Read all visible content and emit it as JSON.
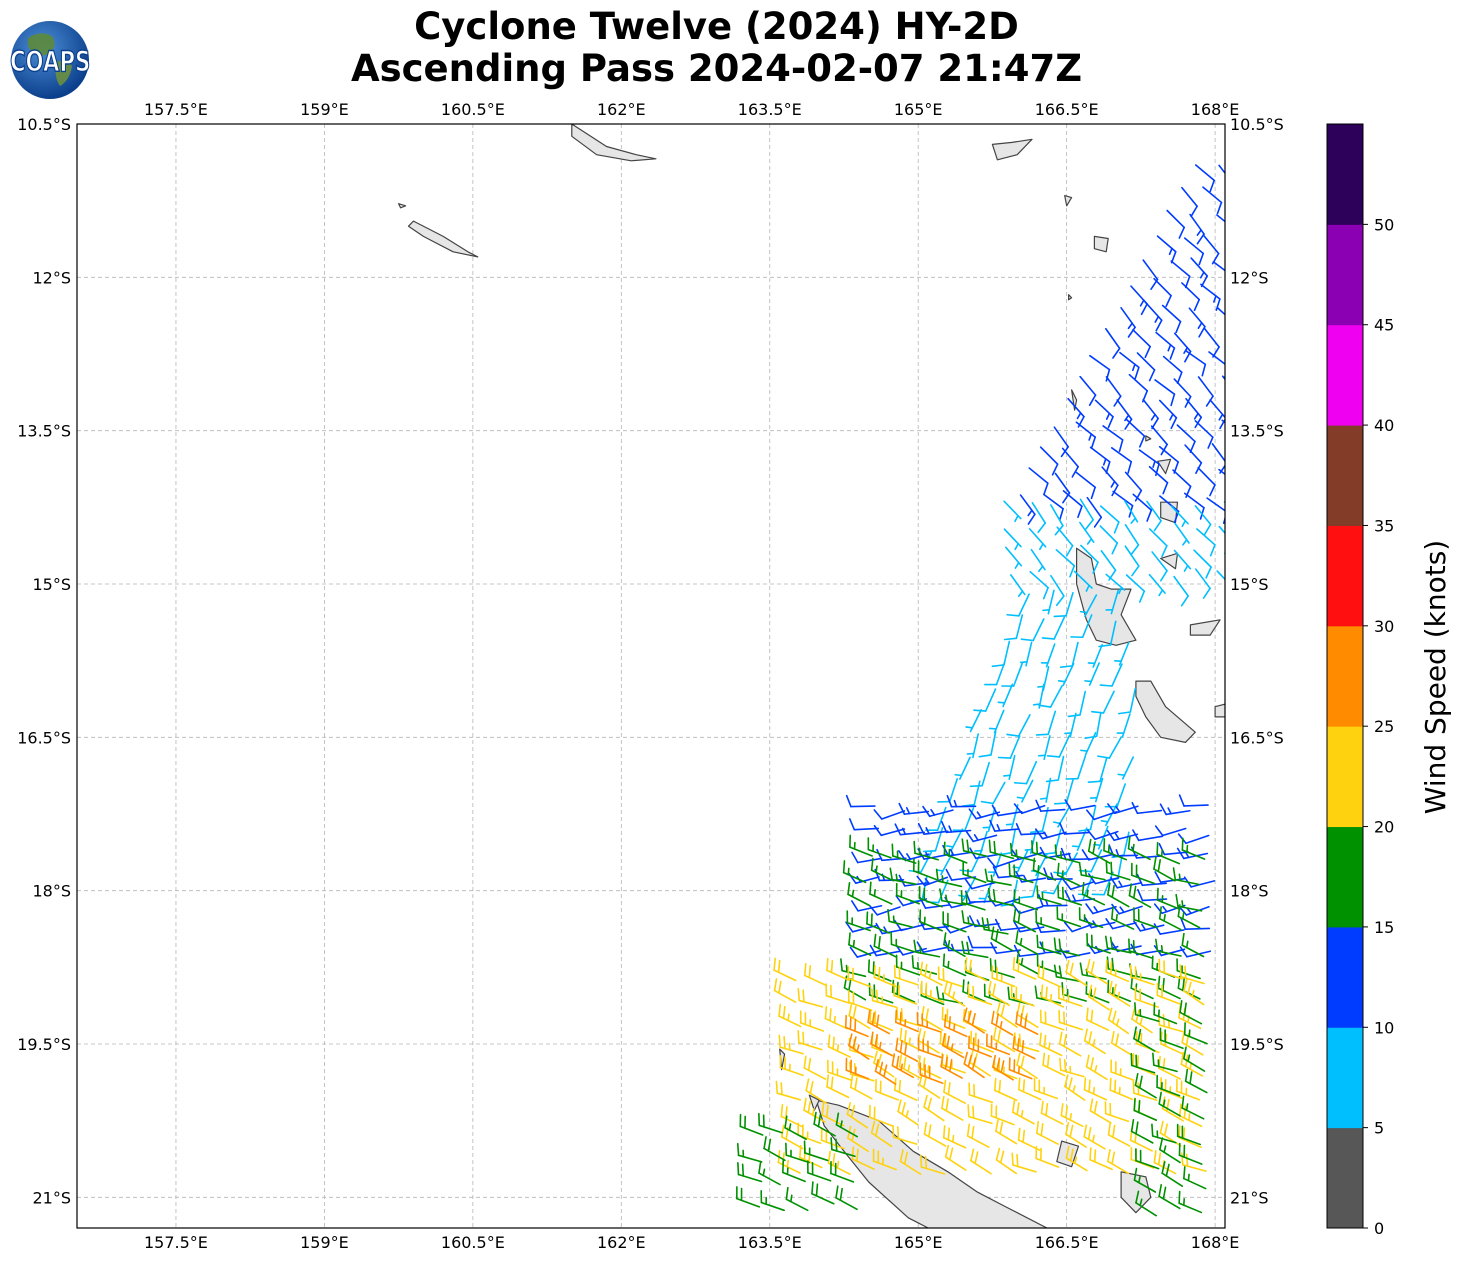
{
  "header": {
    "title_line1": "Cyclone Twelve (2024) HY-2D",
    "title_line2": "Ascending Pass 2024-02-07 21:47Z",
    "logo_text": "COAPS"
  },
  "map": {
    "lon_range": [
      156.5,
      168.1
    ],
    "lat_range": [
      -21.3,
      -10.5
    ],
    "lon_ticks": [
      "157.5°E",
      "159°E",
      "160.5°E",
      "162°E",
      "163.5°E",
      "165°E",
      "166.5°E",
      "168°E"
    ],
    "lat_ticks": [
      "10.5°S",
      "12°S",
      "13.5°S",
      "15°S",
      "16.5°S",
      "18°S",
      "19.5°S",
      "21°S"
    ],
    "gridlines": true,
    "coastline_color": "#444444",
    "land_fill": "#e6e6e6"
  },
  "colorbar": {
    "label": "Wind Speed (knots)",
    "ticks": [
      "0",
      "5",
      "10",
      "15",
      "20",
      "25",
      "30",
      "35",
      "40",
      "45",
      "50"
    ],
    "bins": [
      {
        "min": 0,
        "max": 5,
        "color": "#575757"
      },
      {
        "min": 5,
        "max": 10,
        "color": "#00bfff"
      },
      {
        "min": 10,
        "max": 15,
        "color": "#003cff"
      },
      {
        "min": 15,
        "max": 20,
        "color": "#009100"
      },
      {
        "min": 20,
        "max": 25,
        "color": "#ffd20f"
      },
      {
        "min": 25,
        "max": 30,
        "color": "#ff8c00"
      },
      {
        "min": 30,
        "max": 35,
        "color": "#ff0f0f"
      },
      {
        "min": 35,
        "max": 40,
        "color": "#823c28"
      },
      {
        "min": 40,
        "max": 45,
        "color": "#f000f0"
      },
      {
        "min": 45,
        "max": 50,
        "color": "#8c00b4"
      },
      {
        "min": 50,
        "max": 55,
        "color": "#2d005a"
      }
    ]
  },
  "wind_barb_regions": [
    {
      "name": "north-swath",
      "lat_range": [
        -14.3,
        -10.9
      ],
      "lon_edge_west": [
        167.8,
        165.9
      ],
      "lon_edge_east": 168.1,
      "speed_knots": 12,
      "dir_deg": 315
    },
    {
      "name": "north-swath-south",
      "lat_range": [
        -15.0,
        -14.2
      ],
      "lon_edge_west": 165.9,
      "lon_edge_east": 168.1,
      "speed_knots": 8,
      "dir_deg": 320
    },
    {
      "name": "central-light",
      "lat_range": [
        -18.0,
        -15.1
      ],
      "lon_edge_west": [
        166.1,
        165.0
      ],
      "lon_edge_east": 167.2,
      "speed_knots": 8,
      "dir_deg": 20
    },
    {
      "name": "central-moderate",
      "lat_range": [
        -18.8,
        -17.2
      ],
      "lon_edge_west": 164.6,
      "lon_edge_east": 168.1,
      "speed_knots": 12,
      "dir_deg": 80
    },
    {
      "name": "south-fresh",
      "lat_range": [
        -19.1,
        -17.7
      ],
      "lon_edge_west": 164.5,
      "lon_edge_east": 168.1,
      "speed_knots": 17,
      "dir_deg": 110
    },
    {
      "name": "south-strong",
      "lat_range": [
        -20.8,
        -18.9
      ],
      "lon_edge_west": 163.8,
      "lon_edge_east": 168.1,
      "speed_knots": 22,
      "dir_deg": 115
    },
    {
      "name": "south-east-fresh",
      "lat_range": [
        -21.2,
        -19.3
      ],
      "lon_edge_west": 167.4,
      "lon_edge_east": 168.1,
      "speed_knots": 17,
      "dir_deg": 115
    },
    {
      "name": "south-west-corner",
      "lat_range": [
        -21.3,
        -20.4
      ],
      "lon_edge_west": 163.4,
      "lon_edge_east": 164.5,
      "speed_knots": 18,
      "dir_deg": 115
    },
    {
      "name": "gust-spots",
      "lat_range": [
        -19.9,
        -19.4
      ],
      "lon_edge_west": 164.5,
      "lon_edge_east": 166.4,
      "speed_knots": 27,
      "dir_deg": 115
    }
  ]
}
